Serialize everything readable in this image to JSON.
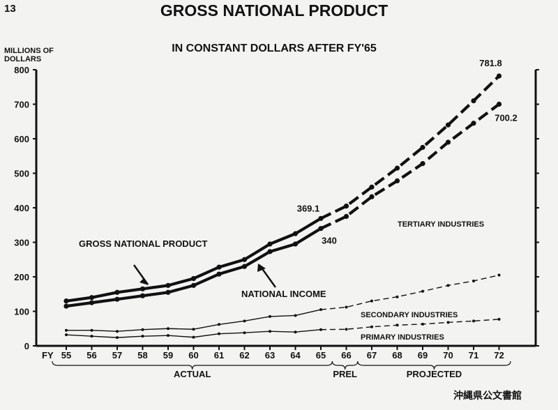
{
  "page_number": "13",
  "stamp": "沖縄県公文書館",
  "chart_data": {
    "type": "line",
    "title": "GROSS NATIONAL PRODUCT",
    "subtitle": "IN CONSTANT DOLLARS AFTER FY'65",
    "ylabel_line1": "MILLIONS OF",
    "ylabel_line2": "DOLLARS",
    "x_prefix": "FY",
    "categories": [
      "55",
      "56",
      "57",
      "58",
      "59",
      "60",
      "61",
      "62",
      "63",
      "64",
      "65",
      "66",
      "67",
      "68",
      "69",
      "70",
      "71",
      "72"
    ],
    "ylim": [
      0,
      800
    ],
    "yticks": [
      0,
      100,
      200,
      300,
      400,
      500,
      600,
      700,
      800
    ],
    "periods": [
      {
        "label": "ACTUAL",
        "from": "55",
        "to": "65"
      },
      {
        "label": "PREL",
        "from": "66",
        "to": "66"
      },
      {
        "label": "PROJECTED",
        "from": "67",
        "to": "72"
      }
    ],
    "series": [
      {
        "name": "GROSS NATIONAL PRODUCT",
        "style": "bold",
        "values": [
          130,
          140,
          155,
          165,
          175,
          195,
          228,
          250,
          295,
          325,
          369.1,
          405,
          460,
          515,
          575,
          640,
          710,
          781.8
        ]
      },
      {
        "name": "NATIONAL INCOME",
        "style": "bold",
        "values": [
          115,
          125,
          135,
          145,
          155,
          175,
          208,
          230,
          273,
          295,
          340,
          375,
          432,
          478,
          528,
          590,
          645,
          700.2
        ]
      },
      {
        "name": "SECONDARY INDUSTRIES",
        "style": "thin",
        "values": [
          45,
          45,
          42,
          47,
          50,
          48,
          62,
          72,
          85,
          88,
          105,
          112,
          130,
          142,
          158,
          175,
          188,
          205
        ]
      },
      {
        "name": "PRIMARY INDUSTRIES",
        "style": "thin",
        "values": [
          32,
          28,
          24,
          28,
          30,
          25,
          35,
          38,
          42,
          40,
          47,
          48,
          55,
          60,
          63,
          68,
          72,
          77
        ]
      }
    ],
    "region_label": "TERTIARY INDUSTRIES",
    "data_labels": [
      {
        "series": "GROSS NATIONAL PRODUCT",
        "x": "65",
        "text": "369.1"
      },
      {
        "series": "NATIONAL INCOME",
        "x": "65",
        "text": "340"
      },
      {
        "series": "GROSS NATIONAL PRODUCT",
        "x": "72",
        "text": "781.8"
      },
      {
        "series": "NATIONAL INCOME",
        "x": "72",
        "text": "700.2"
      }
    ]
  }
}
